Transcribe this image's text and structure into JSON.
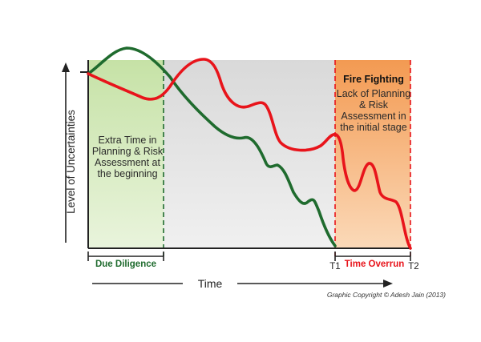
{
  "ylabel": "Level of Uncertainties",
  "xlabel": "Time",
  "phases": {
    "due_diligence": "Due Diligence",
    "time_overrun": "Time Overrun"
  },
  "markers": {
    "t1": "T1",
    "t2": "T2"
  },
  "left_panel_text": "Extra Time in Planning & Risk Assessment at the beginning",
  "right_panel_title": "Fire Fighting",
  "right_panel_text": "Lack of Planning & Risk Assessment in the initial stage",
  "copyright": "Graphic Copyright © Adesh Jain (2013)",
  "colors": {
    "green_line": "#1f6b2e",
    "red_line": "#e8141b",
    "green_panel": "#cfe6b4",
    "gray_panel": "#e4e4e4",
    "orange_panel": "#f4a766"
  },
  "curves": [
    {
      "color_key": "green_line",
      "description_key": "planned"
    },
    {
      "color_key": "red_line",
      "description_key": "unplanned"
    }
  ]
}
